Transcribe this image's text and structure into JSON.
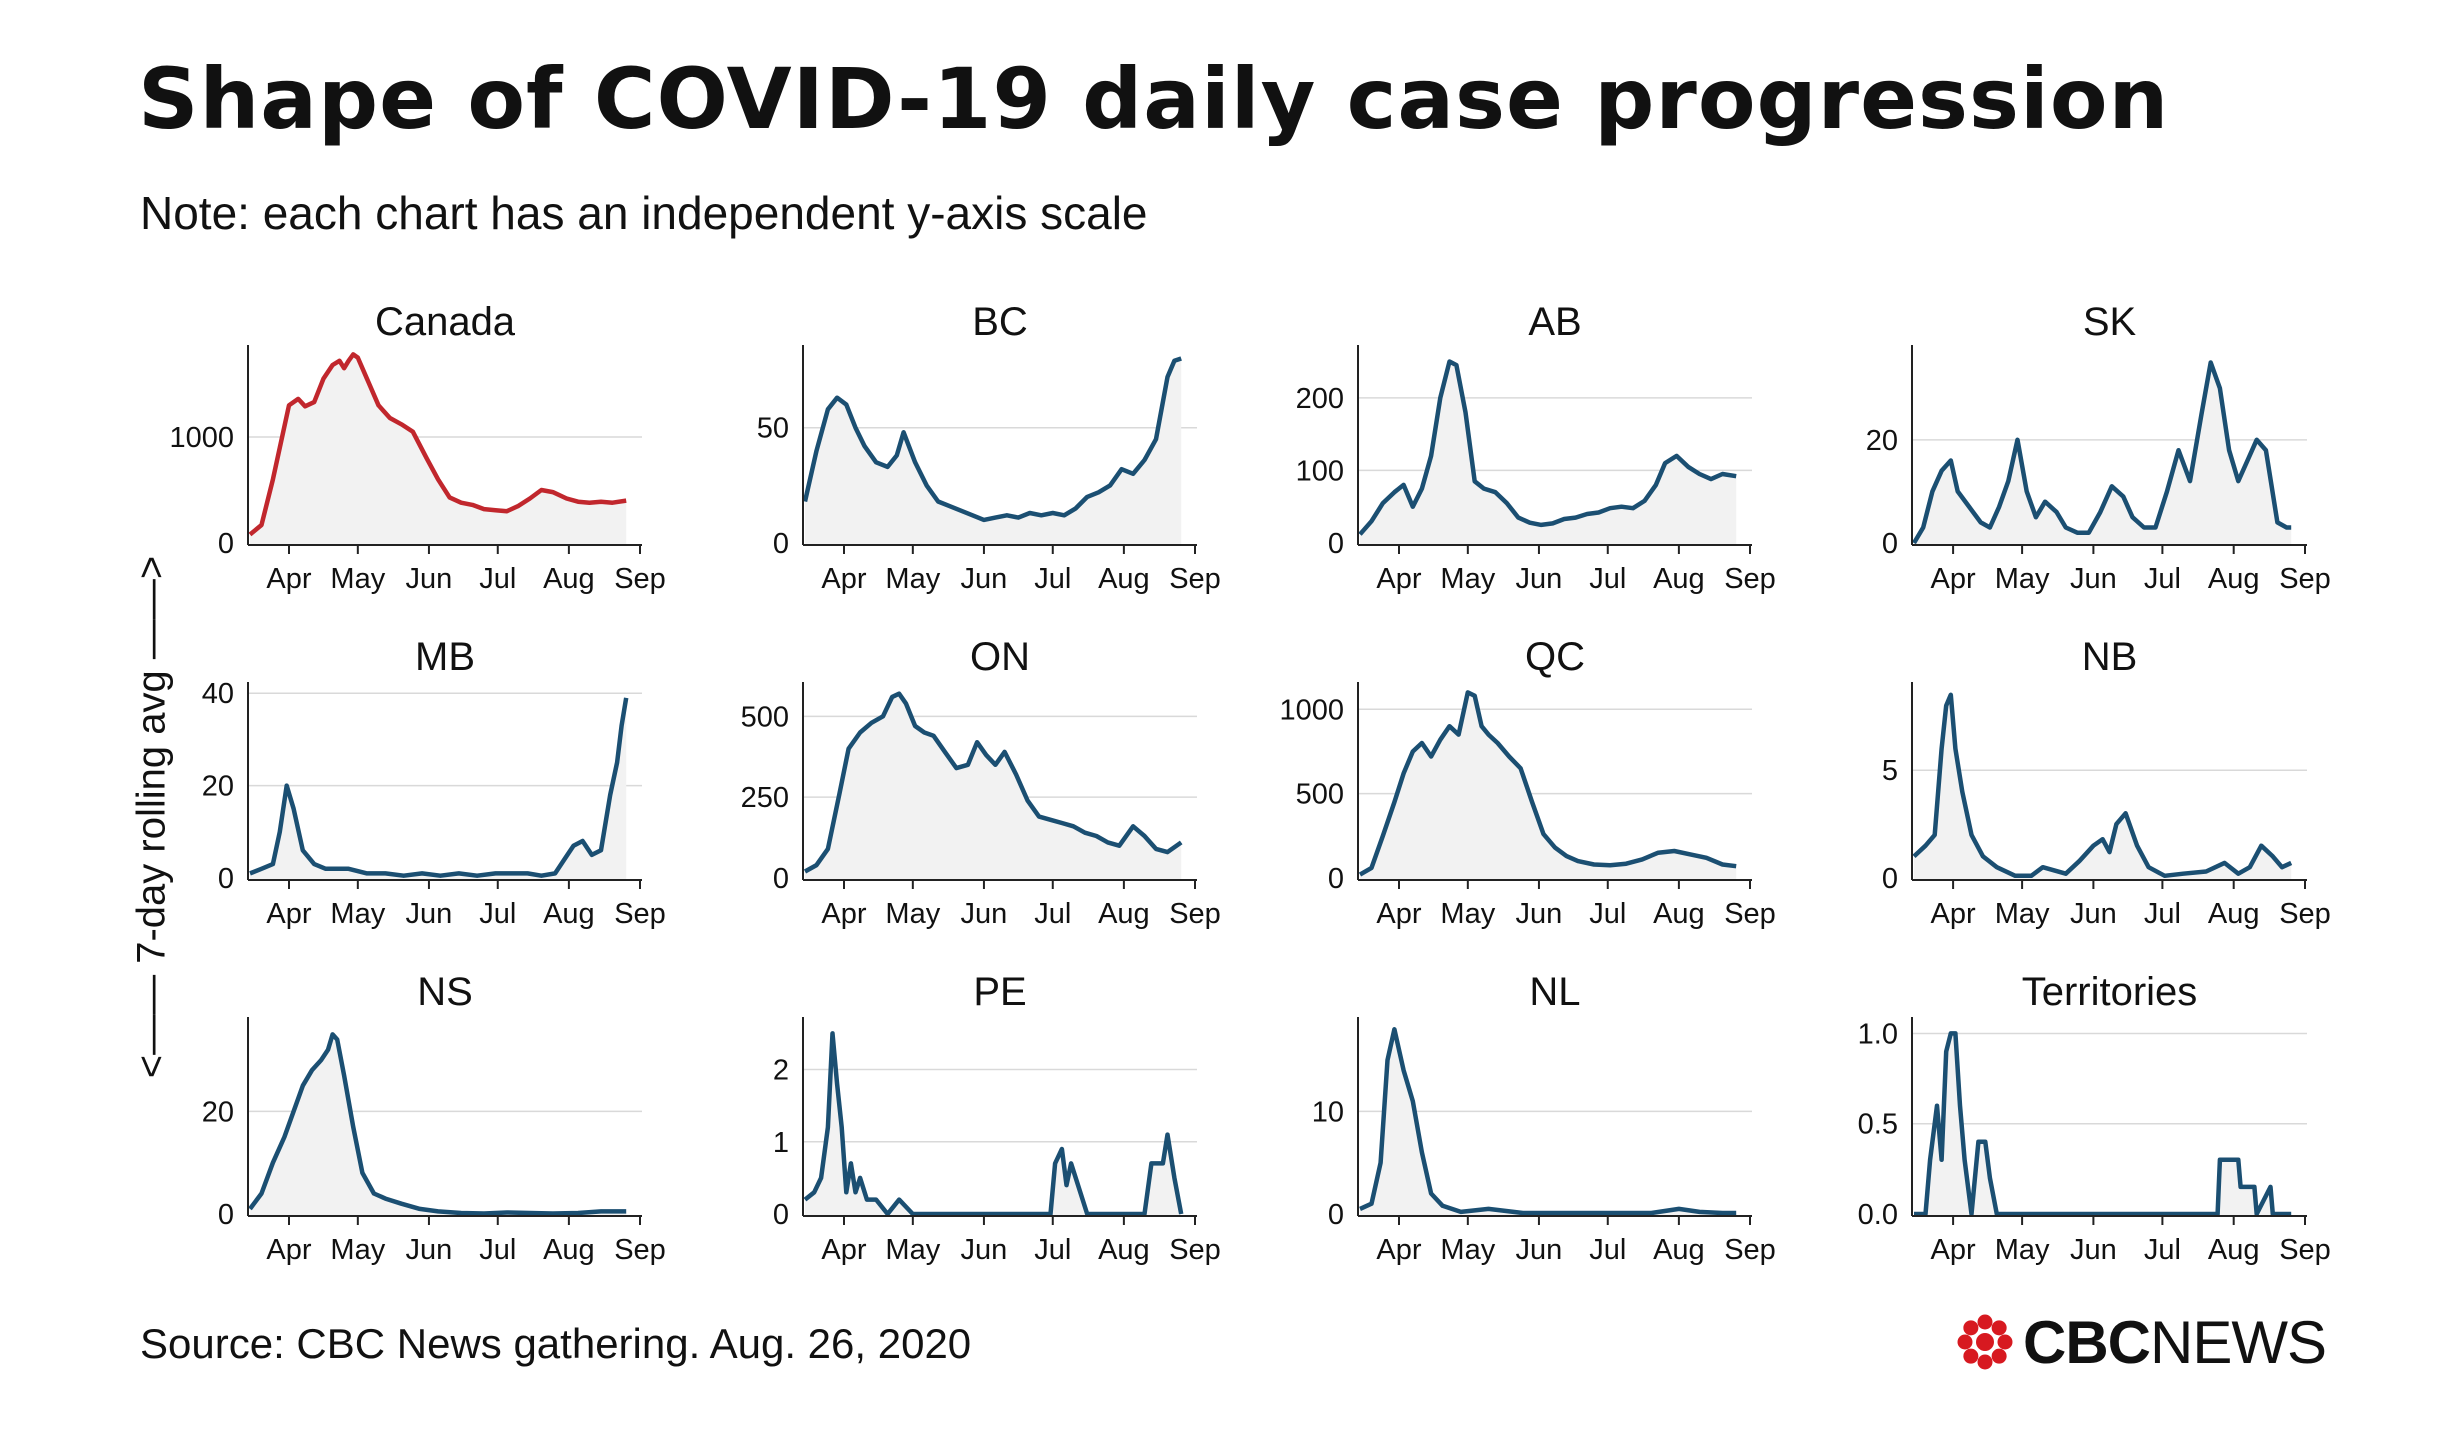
{
  "title": "Shape of COVID-19 daily case progression",
  "subtitle": "Note: each chart has an independent y-axis scale",
  "y_axis_label": "<—— 7-day rolling avg ——>",
  "source": "Source: CBC News gathering. Aug. 26, 2020",
  "logo": {
    "cbc": "CBC",
    "news": "NEWS",
    "color": "#d71920"
  },
  "colors": {
    "canada": "#c1272d",
    "province": "#1b4f72",
    "fill": "#f2f2f2",
    "grid": "#d9d9d9"
  },
  "chart_data": [
    {
      "type": "area",
      "title": "Canada",
      "color": "#c1272d",
      "xlabel": "",
      "ylabel": "7-day rolling avg",
      "x_ticks": [
        "Apr",
        "May",
        "Jun",
        "Jul",
        "Aug",
        "Sep"
      ],
      "y_ticks": [
        0,
        1000
      ],
      "ylim": [
        0,
        1850
      ],
      "x": [
        "2020-03-15",
        "2020-03-20",
        "2020-03-25",
        "2020-03-28",
        "2020-04-01",
        "2020-04-05",
        "2020-04-08",
        "2020-04-12",
        "2020-04-16",
        "2020-04-20",
        "2020-04-23",
        "2020-04-25",
        "2020-04-27",
        "2020-04-29",
        "2020-05-01",
        "2020-05-05",
        "2020-05-10",
        "2020-05-15",
        "2020-05-20",
        "2020-05-25",
        "2020-05-31",
        "2020-06-05",
        "2020-06-10",
        "2020-06-15",
        "2020-06-20",
        "2020-06-25",
        "2020-06-30",
        "2020-07-05",
        "2020-07-10",
        "2020-07-15",
        "2020-07-20",
        "2020-07-25",
        "2020-07-31",
        "2020-08-05",
        "2020-08-10",
        "2020-08-15",
        "2020-08-20",
        "2020-08-26"
      ],
      "y": [
        80,
        170,
        600,
        900,
        1300,
        1360,
        1290,
        1330,
        1550,
        1680,
        1720,
        1650,
        1720,
        1780,
        1750,
        1550,
        1300,
        1180,
        1120,
        1050,
        800,
        600,
        430,
        380,
        360,
        320,
        310,
        300,
        350,
        420,
        500,
        480,
        420,
        390,
        380,
        390,
        380,
        400
      ]
    },
    {
      "type": "area",
      "title": "BC",
      "color": "#1b4f72",
      "xlabel": "",
      "ylabel": "",
      "x_ticks": [
        "Apr",
        "May",
        "Jun",
        "Jul",
        "Aug",
        "Sep"
      ],
      "y_ticks": [
        0,
        50
      ],
      "ylim": [
        0,
        85
      ],
      "x": [
        "2020-03-15",
        "2020-03-20",
        "2020-03-25",
        "2020-03-29",
        "2020-04-02",
        "2020-04-06",
        "2020-04-10",
        "2020-04-15",
        "2020-04-20",
        "2020-04-24",
        "2020-04-27",
        "2020-05-02",
        "2020-05-07",
        "2020-05-12",
        "2020-05-17",
        "2020-05-22",
        "2020-05-27",
        "2020-06-01",
        "2020-06-06",
        "2020-06-11",
        "2020-06-16",
        "2020-06-21",
        "2020-06-26",
        "2020-07-01",
        "2020-07-06",
        "2020-07-11",
        "2020-07-16",
        "2020-07-21",
        "2020-07-26",
        "2020-07-31",
        "2020-08-05",
        "2020-08-10",
        "2020-08-15",
        "2020-08-20",
        "2020-08-23",
        "2020-08-26"
      ],
      "y": [
        18,
        40,
        58,
        63,
        60,
        50,
        42,
        35,
        33,
        38,
        48,
        35,
        25,
        18,
        16,
        14,
        12,
        10,
        11,
        12,
        11,
        13,
        12,
        13,
        12,
        15,
        20,
        22,
        25,
        32,
        30,
        36,
        45,
        72,
        79,
        80
      ]
    },
    {
      "type": "area",
      "title": "AB",
      "color": "#1b4f72",
      "xlabel": "",
      "ylabel": "",
      "x_ticks": [
        "Apr",
        "May",
        "Jun",
        "Jul",
        "Aug",
        "Sep"
      ],
      "y_ticks": [
        0,
        100,
        200
      ],
      "ylim": [
        0,
        270
      ],
      "x": [
        "2020-03-15",
        "2020-03-20",
        "2020-03-25",
        "2020-03-30",
        "2020-04-03",
        "2020-04-07",
        "2020-04-11",
        "2020-04-15",
        "2020-04-19",
        "2020-04-23",
        "2020-04-26",
        "2020-04-30",
        "2020-05-04",
        "2020-05-08",
        "2020-05-13",
        "2020-05-18",
        "2020-05-23",
        "2020-05-28",
        "2020-06-02",
        "2020-06-07",
        "2020-06-12",
        "2020-06-17",
        "2020-06-22",
        "2020-06-27",
        "2020-07-02",
        "2020-07-07",
        "2020-07-12",
        "2020-07-17",
        "2020-07-22",
        "2020-07-26",
        "2020-07-31",
        "2020-08-05",
        "2020-08-10",
        "2020-08-15",
        "2020-08-20",
        "2020-08-26"
      ],
      "y": [
        12,
        30,
        55,
        70,
        80,
        50,
        75,
        120,
        200,
        250,
        245,
        180,
        85,
        75,
        70,
        55,
        35,
        28,
        25,
        27,
        33,
        35,
        40,
        42,
        48,
        50,
        48,
        58,
        80,
        110,
        120,
        105,
        95,
        88,
        95,
        92
      ]
    },
    {
      "type": "area",
      "title": "SK",
      "color": "#1b4f72",
      "xlabel": "",
      "ylabel": "",
      "x_ticks": [
        "Apr",
        "May",
        "Jun",
        "Jul",
        "Aug",
        "Sep"
      ],
      "y_ticks": [
        0,
        20
      ],
      "ylim": [
        0,
        38
      ],
      "x": [
        "2020-03-15",
        "2020-03-19",
        "2020-03-23",
        "2020-03-27",
        "2020-03-31",
        "2020-04-03",
        "2020-04-08",
        "2020-04-13",
        "2020-04-17",
        "2020-04-21",
        "2020-04-25",
        "2020-04-29",
        "2020-05-03",
        "2020-05-07",
        "2020-05-11",
        "2020-05-16",
        "2020-05-20",
        "2020-05-25",
        "2020-05-30",
        "2020-06-04",
        "2020-06-09",
        "2020-06-14",
        "2020-06-18",
        "2020-06-23",
        "2020-06-28",
        "2020-07-03",
        "2020-07-08",
        "2020-07-13",
        "2020-07-18",
        "2020-07-22",
        "2020-07-26",
        "2020-07-30",
        "2020-08-03",
        "2020-08-07",
        "2020-08-11",
        "2020-08-15",
        "2020-08-20",
        "2020-08-24",
        "2020-08-26"
      ],
      "y": [
        0,
        3,
        10,
        14,
        16,
        10,
        7,
        4,
        3,
        7,
        12,
        20,
        10,
        5,
        8,
        6,
        3,
        2,
        2,
        6,
        11,
        9,
        5,
        3,
        3,
        10,
        18,
        12,
        25,
        35,
        30,
        18,
        12,
        16,
        20,
        18,
        4,
        3,
        3
      ]
    },
    {
      "type": "area",
      "title": "MB",
      "color": "#1b4f72",
      "xlabel": "",
      "ylabel": "",
      "x_ticks": [
        "Apr",
        "May",
        "Jun",
        "Jul",
        "Aug",
        "Sep"
      ],
      "y_ticks": [
        0,
        20,
        40
      ],
      "ylim": [
        0,
        42
      ],
      "x": [
        "2020-03-15",
        "2020-03-20",
        "2020-03-25",
        "2020-03-28",
        "2020-03-31",
        "2020-04-03",
        "2020-04-07",
        "2020-04-12",
        "2020-04-17",
        "2020-04-22",
        "2020-04-27",
        "2020-05-05",
        "2020-05-13",
        "2020-05-21",
        "2020-05-29",
        "2020-06-06",
        "2020-06-14",
        "2020-06-22",
        "2020-06-30",
        "2020-07-08",
        "2020-07-14",
        "2020-07-20",
        "2020-07-26",
        "2020-07-30",
        "2020-08-03",
        "2020-08-07",
        "2020-08-11",
        "2020-08-15",
        "2020-08-19",
        "2020-08-22",
        "2020-08-24",
        "2020-08-26"
      ],
      "y": [
        1,
        2,
        3,
        10,
        20,
        15,
        6,
        3,
        2,
        2,
        2,
        1,
        1,
        0.5,
        1,
        0.5,
        1,
        0.5,
        1,
        1,
        1,
        0.5,
        1,
        4,
        7,
        8,
        5,
        6,
        18,
        25,
        33,
        39
      ]
    },
    {
      "type": "area",
      "title": "ON",
      "color": "#1b4f72",
      "xlabel": "",
      "ylabel": "",
      "x_ticks": [
        "Apr",
        "May",
        "Jun",
        "Jul",
        "Aug",
        "Sep"
      ],
      "y_ticks": [
        0,
        250,
        500
      ],
      "ylim": [
        0,
        600
      ],
      "x": [
        "2020-03-15",
        "2020-03-20",
        "2020-03-25",
        "2020-03-30",
        "2020-04-03",
        "2020-04-08",
        "2020-04-13",
        "2020-04-18",
        "2020-04-22",
        "2020-04-25",
        "2020-04-28",
        "2020-05-02",
        "2020-05-06",
        "2020-05-10",
        "2020-05-15",
        "2020-05-20",
        "2020-05-25",
        "2020-05-29",
        "2020-06-02",
        "2020-06-06",
        "2020-06-10",
        "2020-06-15",
        "2020-06-20",
        "2020-06-25",
        "2020-06-30",
        "2020-07-05",
        "2020-07-10",
        "2020-07-15",
        "2020-07-20",
        "2020-07-25",
        "2020-07-30",
        "2020-08-05",
        "2020-08-10",
        "2020-08-15",
        "2020-08-20",
        "2020-08-26"
      ],
      "y": [
        20,
        40,
        90,
        260,
        400,
        450,
        480,
        500,
        560,
        570,
        540,
        470,
        450,
        440,
        390,
        340,
        350,
        420,
        380,
        350,
        390,
        320,
        240,
        190,
        180,
        170,
        160,
        140,
        130,
        110,
        100,
        160,
        130,
        90,
        80,
        110
      ]
    },
    {
      "type": "area",
      "title": "QC",
      "color": "#1b4f72",
      "xlabel": "",
      "ylabel": "",
      "x_ticks": [
        "Apr",
        "May",
        "Jun",
        "Jul",
        "Aug",
        "Sep"
      ],
      "y_ticks": [
        0,
        500,
        1000
      ],
      "ylim": [
        0,
        1150
      ],
      "x": [
        "2020-03-15",
        "2020-03-20",
        "2020-03-25",
        "2020-03-30",
        "2020-04-03",
        "2020-04-07",
        "2020-04-11",
        "2020-04-15",
        "2020-04-19",
        "2020-04-23",
        "2020-04-27",
        "2020-05-01",
        "2020-05-04",
        "2020-05-07",
        "2020-05-10",
        "2020-05-14",
        "2020-05-19",
        "2020-05-24",
        "2020-05-29",
        "2020-06-03",
        "2020-06-08",
        "2020-06-13",
        "2020-06-18",
        "2020-06-25",
        "2020-07-02",
        "2020-07-09",
        "2020-07-16",
        "2020-07-23",
        "2020-07-30",
        "2020-08-06",
        "2020-08-13",
        "2020-08-20",
        "2020-08-26"
      ],
      "y": [
        20,
        60,
        250,
        450,
        620,
        750,
        800,
        720,
        820,
        900,
        850,
        1100,
        1080,
        900,
        850,
        800,
        720,
        650,
        450,
        260,
        180,
        130,
        100,
        80,
        75,
        85,
        110,
        150,
        160,
        140,
        120,
        80,
        70
      ]
    },
    {
      "type": "area",
      "title": "NB",
      "color": "#1b4f72",
      "xlabel": "",
      "ylabel": "",
      "x_ticks": [
        "Apr",
        "May",
        "Jun",
        "Jul",
        "Aug",
        "Sep"
      ],
      "y_ticks": [
        0,
        5
      ],
      "ylim": [
        0,
        9
      ],
      "x": [
        "2020-03-15",
        "2020-03-20",
        "2020-03-24",
        "2020-03-27",
        "2020-03-29",
        "2020-03-31",
        "2020-04-02",
        "2020-04-05",
        "2020-04-09",
        "2020-04-14",
        "2020-04-20",
        "2020-04-28",
        "2020-05-05",
        "2020-05-10",
        "2020-05-20",
        "2020-05-26",
        "2020-06-01",
        "2020-06-05",
        "2020-06-08",
        "2020-06-11",
        "2020-06-15",
        "2020-06-20",
        "2020-06-25",
        "2020-07-02",
        "2020-07-10",
        "2020-07-20",
        "2020-07-28",
        "2020-08-03",
        "2020-08-08",
        "2020-08-13",
        "2020-08-18",
        "2020-08-22",
        "2020-08-26"
      ],
      "y": [
        1,
        1.5,
        2,
        6,
        8,
        8.5,
        6,
        4,
        2,
        1,
        0.5,
        0.1,
        0.1,
        0.5,
        0.2,
        0.8,
        1.5,
        1.8,
        1.2,
        2.5,
        3,
        1.5,
        0.5,
        0.1,
        0.2,
        0.3,
        0.7,
        0.2,
        0.5,
        1.5,
        1,
        0.5,
        0.7
      ]
    },
    {
      "type": "area",
      "title": "NS",
      "color": "#1b4f72",
      "xlabel": "",
      "ylabel": "",
      "x_ticks": [
        "Apr",
        "May",
        "Jun",
        "Jul",
        "Aug",
        "Sep"
      ],
      "y_ticks": [
        0,
        20
      ],
      "ylim": [
        0,
        38
      ],
      "x": [
        "2020-03-15",
        "2020-03-20",
        "2020-03-25",
        "2020-03-30",
        "2020-04-03",
        "2020-04-07",
        "2020-04-11",
        "2020-04-15",
        "2020-04-18",
        "2020-04-20",
        "2020-04-22",
        "2020-04-25",
        "2020-04-29",
        "2020-05-03",
        "2020-05-08",
        "2020-05-13",
        "2020-05-20",
        "2020-05-28",
        "2020-06-05",
        "2020-06-15",
        "2020-06-25",
        "2020-07-05",
        "2020-07-15",
        "2020-07-25",
        "2020-08-05",
        "2020-08-15",
        "2020-08-26"
      ],
      "y": [
        1,
        4,
        10,
        15,
        20,
        25,
        28,
        30,
        32,
        35,
        34,
        27,
        17,
        8,
        4,
        3,
        2,
        1,
        0.5,
        0.2,
        0.1,
        0.3,
        0.2,
        0.1,
        0.2,
        0.5,
        0.5
      ]
    },
    {
      "type": "area",
      "title": "PE",
      "color": "#1b4f72",
      "xlabel": "",
      "ylabel": "",
      "x_ticks": [
        "Apr",
        "May",
        "Jun",
        "Jul",
        "Aug",
        "Sep"
      ],
      "y_ticks": [
        0,
        1,
        2
      ],
      "ylim": [
        0,
        2.7
      ],
      "x": [
        "2020-03-15",
        "2020-03-19",
        "2020-03-22",
        "2020-03-25",
        "2020-03-27",
        "2020-03-29",
        "2020-03-31",
        "2020-04-02",
        "2020-04-04",
        "2020-04-06",
        "2020-04-08",
        "2020-04-11",
        "2020-04-15",
        "2020-04-20",
        "2020-04-25",
        "2020-05-01",
        "2020-05-10",
        "2020-06-15",
        "2020-06-30",
        "2020-07-02",
        "2020-07-05",
        "2020-07-07",
        "2020-07-09",
        "2020-07-12",
        "2020-07-16",
        "2020-07-22",
        "2020-08-10",
        "2020-08-13",
        "2020-08-18",
        "2020-08-20",
        "2020-08-23",
        "2020-08-26"
      ],
      "y": [
        0.2,
        0.3,
        0.5,
        1.2,
        2.5,
        1.8,
        1.2,
        0.3,
        0.7,
        0.3,
        0.5,
        0.2,
        0.2,
        0,
        0.2,
        0,
        0,
        0,
        0,
        0.7,
        0.9,
        0.4,
        0.7,
        0.4,
        0,
        0,
        0,
        0.7,
        0.7,
        1.1,
        0.5,
        0
      ]
    },
    {
      "type": "area",
      "title": "NL",
      "color": "#1b4f72",
      "xlabel": "",
      "ylabel": "",
      "x_ticks": [
        "Apr",
        "May",
        "Jun",
        "Jul",
        "Aug",
        "Sep"
      ],
      "y_ticks": [
        0,
        10
      ],
      "ylim": [
        0,
        19
      ],
      "x": [
        "2020-03-15",
        "2020-03-20",
        "2020-03-24",
        "2020-03-27",
        "2020-03-30",
        "2020-04-03",
        "2020-04-07",
        "2020-04-11",
        "2020-04-15",
        "2020-04-20",
        "2020-04-28",
        "2020-05-10",
        "2020-05-25",
        "2020-06-10",
        "2020-06-30",
        "2020-07-20",
        "2020-08-01",
        "2020-08-10",
        "2020-08-20",
        "2020-08-26"
      ],
      "y": [
        0.5,
        1,
        5,
        15,
        18,
        14,
        11,
        6,
        2,
        0.8,
        0.2,
        0.5,
        0.1,
        0.1,
        0.1,
        0.1,
        0.5,
        0.2,
        0.1,
        0.1
      ]
    },
    {
      "type": "area",
      "title": "Territories",
      "color": "#1b4f72",
      "xlabel": "",
      "ylabel": "",
      "x_ticks": [
        "Apr",
        "May",
        "Jun",
        "Jul",
        "Aug",
        "Sep"
      ],
      "y_ticks": [
        "0.0",
        "0.5",
        "1.0"
      ],
      "ylim": [
        0,
        1.08
      ],
      "x": [
        "2020-03-15",
        "2020-03-20",
        "2020-03-22",
        "2020-03-25",
        "2020-03-27",
        "2020-03-29",
        "2020-03-31",
        "2020-04-02",
        "2020-04-04",
        "2020-04-06",
        "2020-04-09",
        "2020-04-12",
        "2020-04-15",
        "2020-04-17",
        "2020-04-20",
        "2020-04-22",
        "2020-04-25",
        "2020-04-28",
        "2020-05-01",
        "2020-05-25",
        "2020-07-25",
        "2020-07-26",
        "2020-08-03",
        "2020-08-04",
        "2020-08-10",
        "2020-08-11",
        "2020-08-17",
        "2020-08-18",
        "2020-08-26"
      ],
      "y": [
        0,
        0,
        0.3,
        0.6,
        0.3,
        0.9,
        1,
        1,
        0.6,
        0.3,
        0,
        0.4,
        0.4,
        0.2,
        0,
        0,
        0,
        0,
        0,
        0,
        0,
        0.3,
        0.3,
        0.15,
        0.15,
        0,
        0.15,
        0,
        0
      ]
    }
  ]
}
